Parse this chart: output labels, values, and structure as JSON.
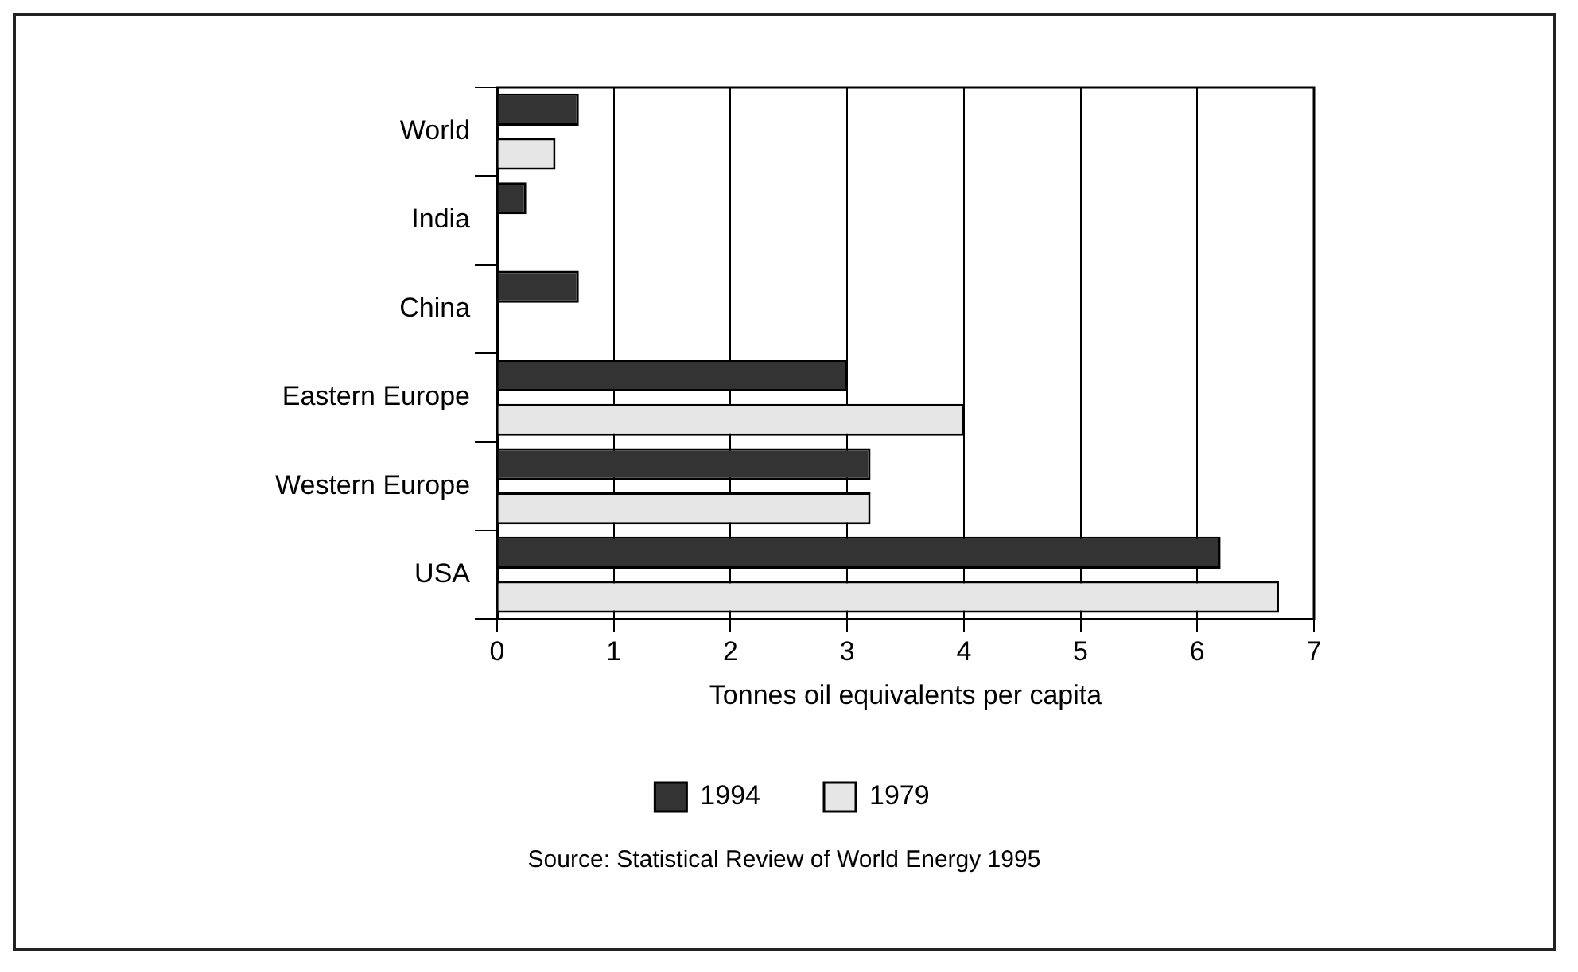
{
  "chart_data": {
    "type": "bar",
    "orientation": "horizontal",
    "categories": [
      "World",
      "India",
      "China",
      "Eastern Europe",
      "Western Europe",
      "USA"
    ],
    "series": [
      {
        "name": "1994",
        "color": "#333333",
        "values": [
          0.7,
          0.25,
          0.7,
          3.0,
          3.2,
          6.2
        ]
      },
      {
        "name": "1979",
        "color": "#e6e6e6",
        "values": [
          0.5,
          null,
          null,
          4.0,
          3.2,
          6.7
        ]
      }
    ],
    "xlabel": "Tonnes oil equivalents per capita",
    "xlim": [
      0,
      7
    ],
    "xticks": [
      0,
      1,
      2,
      3,
      4,
      5,
      6,
      7
    ],
    "grid": "x",
    "legend": "bottom",
    "annotations": [
      "Source: Statistical Review of World Energy 1995"
    ]
  }
}
